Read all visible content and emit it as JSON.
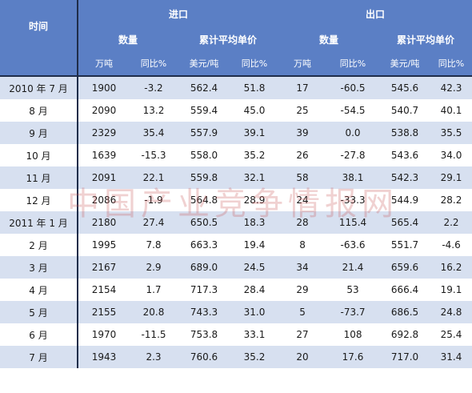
{
  "header": {
    "time_label": "时间",
    "import_label": "进口",
    "export_label": "出口",
    "quantity_label": "数量",
    "avg_price_label": "累计平均单价",
    "unit_wt": "万吨",
    "unit_yoy": "同比%",
    "unit_usd_t": "美元/吨"
  },
  "rows": [
    {
      "time": "2010 年 7 月",
      "imp_qty": "1900",
      "imp_qty_yoy": "-3.2",
      "imp_price": "562.4",
      "imp_price_yoy": "51.8",
      "exp_qty": "17",
      "exp_qty_yoy": "-60.5",
      "exp_price": "545.6",
      "exp_price_yoy": "42.3"
    },
    {
      "time": "8 月",
      "imp_qty": "2090",
      "imp_qty_yoy": "13.2",
      "imp_price": "559.4",
      "imp_price_yoy": "45.0",
      "exp_qty": "25",
      "exp_qty_yoy": "-54.5",
      "exp_price": "540.7",
      "exp_price_yoy": "40.1"
    },
    {
      "time": "9 月",
      "imp_qty": "2329",
      "imp_qty_yoy": "35.4",
      "imp_price": "557.9",
      "imp_price_yoy": "39.1",
      "exp_qty": "39",
      "exp_qty_yoy": "0.0",
      "exp_price": "538.8",
      "exp_price_yoy": "35.5"
    },
    {
      "time": "10 月",
      "imp_qty": "1639",
      "imp_qty_yoy": "-15.3",
      "imp_price": "558.0",
      "imp_price_yoy": "35.2",
      "exp_qty": "26",
      "exp_qty_yoy": "-27.8",
      "exp_price": "543.6",
      "exp_price_yoy": "34.0"
    },
    {
      "time": "11 月",
      "imp_qty": "2091",
      "imp_qty_yoy": "22.1",
      "imp_price": "559.8",
      "imp_price_yoy": "32.1",
      "exp_qty": "58",
      "exp_qty_yoy": "38.1",
      "exp_price": "542.3",
      "exp_price_yoy": "29.1"
    },
    {
      "time": "12 月",
      "imp_qty": "2086",
      "imp_qty_yoy": "-1.9",
      "imp_price": "564.8",
      "imp_price_yoy": "28.9",
      "exp_qty": "24",
      "exp_qty_yoy": "-33.3",
      "exp_price": "544.9",
      "exp_price_yoy": "28.2"
    },
    {
      "time": "2011 年 1 月",
      "imp_qty": "2180",
      "imp_qty_yoy": "27.4",
      "imp_price": "650.5",
      "imp_price_yoy": "18.3",
      "exp_qty": "28",
      "exp_qty_yoy": "115.4",
      "exp_price": "565.4",
      "exp_price_yoy": "2.2"
    },
    {
      "time": "2 月",
      "imp_qty": "1995",
      "imp_qty_yoy": "7.8",
      "imp_price": "663.3",
      "imp_price_yoy": "19.4",
      "exp_qty": "8",
      "exp_qty_yoy": "-63.6",
      "exp_price": "551.7",
      "exp_price_yoy": "-4.6"
    },
    {
      "time": "3 月",
      "imp_qty": "2167",
      "imp_qty_yoy": "2.9",
      "imp_price": "689.0",
      "imp_price_yoy": "24.5",
      "exp_qty": "34",
      "exp_qty_yoy": "21.4",
      "exp_price": "659.6",
      "exp_price_yoy": "16.2"
    },
    {
      "time": "4 月",
      "imp_qty": "2154",
      "imp_qty_yoy": "1.7",
      "imp_price": "717.3",
      "imp_price_yoy": "28.4",
      "exp_qty": "29",
      "exp_qty_yoy": "53",
      "exp_price": "666.4",
      "exp_price_yoy": "19.1"
    },
    {
      "time": "5 月",
      "imp_qty": "2155",
      "imp_qty_yoy": "20.8",
      "imp_price": "743.3",
      "imp_price_yoy": "31.0",
      "exp_qty": "5",
      "exp_qty_yoy": "-73.7",
      "exp_price": "686.5",
      "exp_price_yoy": "24.8"
    },
    {
      "time": "6 月",
      "imp_qty": "1970",
      "imp_qty_yoy": "-11.5",
      "imp_price": "753.8",
      "imp_price_yoy": "33.1",
      "exp_qty": "27",
      "exp_qty_yoy": "108",
      "exp_price": "692.8",
      "exp_price_yoy": "25.4"
    },
    {
      "time": "7 月",
      "imp_qty": "1943",
      "imp_qty_yoy": "2.3",
      "imp_price": "760.6",
      "imp_price_yoy": "35.2",
      "exp_qty": "20",
      "exp_qty_yoy": "17.6",
      "exp_price": "717.0",
      "exp_price_yoy": "31.4"
    }
  ],
  "watermark": "中国产业竞争情报网",
  "colors": {
    "header_bg": "#5b7fc5",
    "row_shade": "#d7e0f0",
    "row_plain": "#ffffff",
    "watermark": "#c85a5a"
  }
}
